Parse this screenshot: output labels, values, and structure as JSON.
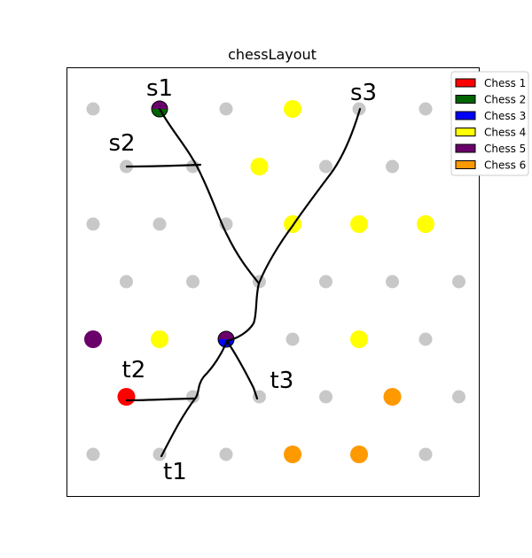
{
  "chart_data": {
    "type": "scatter",
    "title": "chessLayout",
    "colors": {
      "Chess 1": "#ff0000",
      "Chess 2": "#006400",
      "Chess 3": "#0000ff",
      "Chess 4": "#ffff00",
      "Chess 5": "#6a006a",
      "Chess 6": "#ff9900",
      "empty": "#c8c8c8"
    },
    "legend": {
      "placement": "top-right",
      "entries": [
        "Chess 1",
        "Chess 2",
        "Chess 3",
        "Chess 4",
        "Chess 5",
        "Chess 6"
      ]
    },
    "grid": {
      "rows": [
        {
          "offset": 0,
          "count": 6
        },
        {
          "offset": 0.5,
          "count": 6
        },
        {
          "offset": 0,
          "count": 6
        },
        {
          "offset": 0.5,
          "count": 6
        },
        {
          "offset": 0,
          "count": 6
        },
        {
          "offset": 0.5,
          "count": 6
        },
        {
          "offset": 0,
          "count": 6
        }
      ]
    },
    "pieces": [
      {
        "row": 0,
        "col": 3,
        "colors": [
          "Chess 4"
        ]
      },
      {
        "row": 0,
        "col": 1,
        "colors": [
          "Chess 5",
          "Chess 2"
        ]
      },
      {
        "row": 1,
        "col": 2,
        "colors": [
          "Chess 4"
        ]
      },
      {
        "row": 2,
        "col": 3,
        "colors": [
          "Chess 4"
        ]
      },
      {
        "row": 2,
        "col": 4,
        "colors": [
          "Chess 4"
        ]
      },
      {
        "row": 2,
        "col": 5,
        "colors": [
          "Chess 4"
        ]
      },
      {
        "row": 4,
        "col": 0,
        "colors": [
          "Chess 5"
        ]
      },
      {
        "row": 4,
        "col": 1,
        "colors": [
          "Chess 4"
        ]
      },
      {
        "row": 4,
        "col": 2,
        "colors": [
          "Chess 5",
          "Chess 3"
        ]
      },
      {
        "row": 4,
        "col": 4,
        "colors": [
          "Chess 4"
        ]
      },
      {
        "row": 5,
        "col": 0,
        "colors": [
          "Chess 1"
        ]
      },
      {
        "row": 5,
        "col": 4,
        "colors": [
          "Chess 6"
        ]
      },
      {
        "row": 6,
        "col": 3,
        "colors": [
          "Chess 6"
        ]
      },
      {
        "row": 6,
        "col": 4,
        "colors": [
          "Chess 6"
        ]
      }
    ],
    "annotations": [
      {
        "label": "s1",
        "row": 0,
        "col": 1
      },
      {
        "label": "s2",
        "row": 1,
        "col": 0
      },
      {
        "label": "s3",
        "row": 0,
        "col": 4
      },
      {
        "label": "t1",
        "row": 6,
        "col": 1
      },
      {
        "label": "t2",
        "row": 5,
        "col": 0
      },
      {
        "label": "t3",
        "row": 5,
        "col": 2
      }
    ]
  }
}
